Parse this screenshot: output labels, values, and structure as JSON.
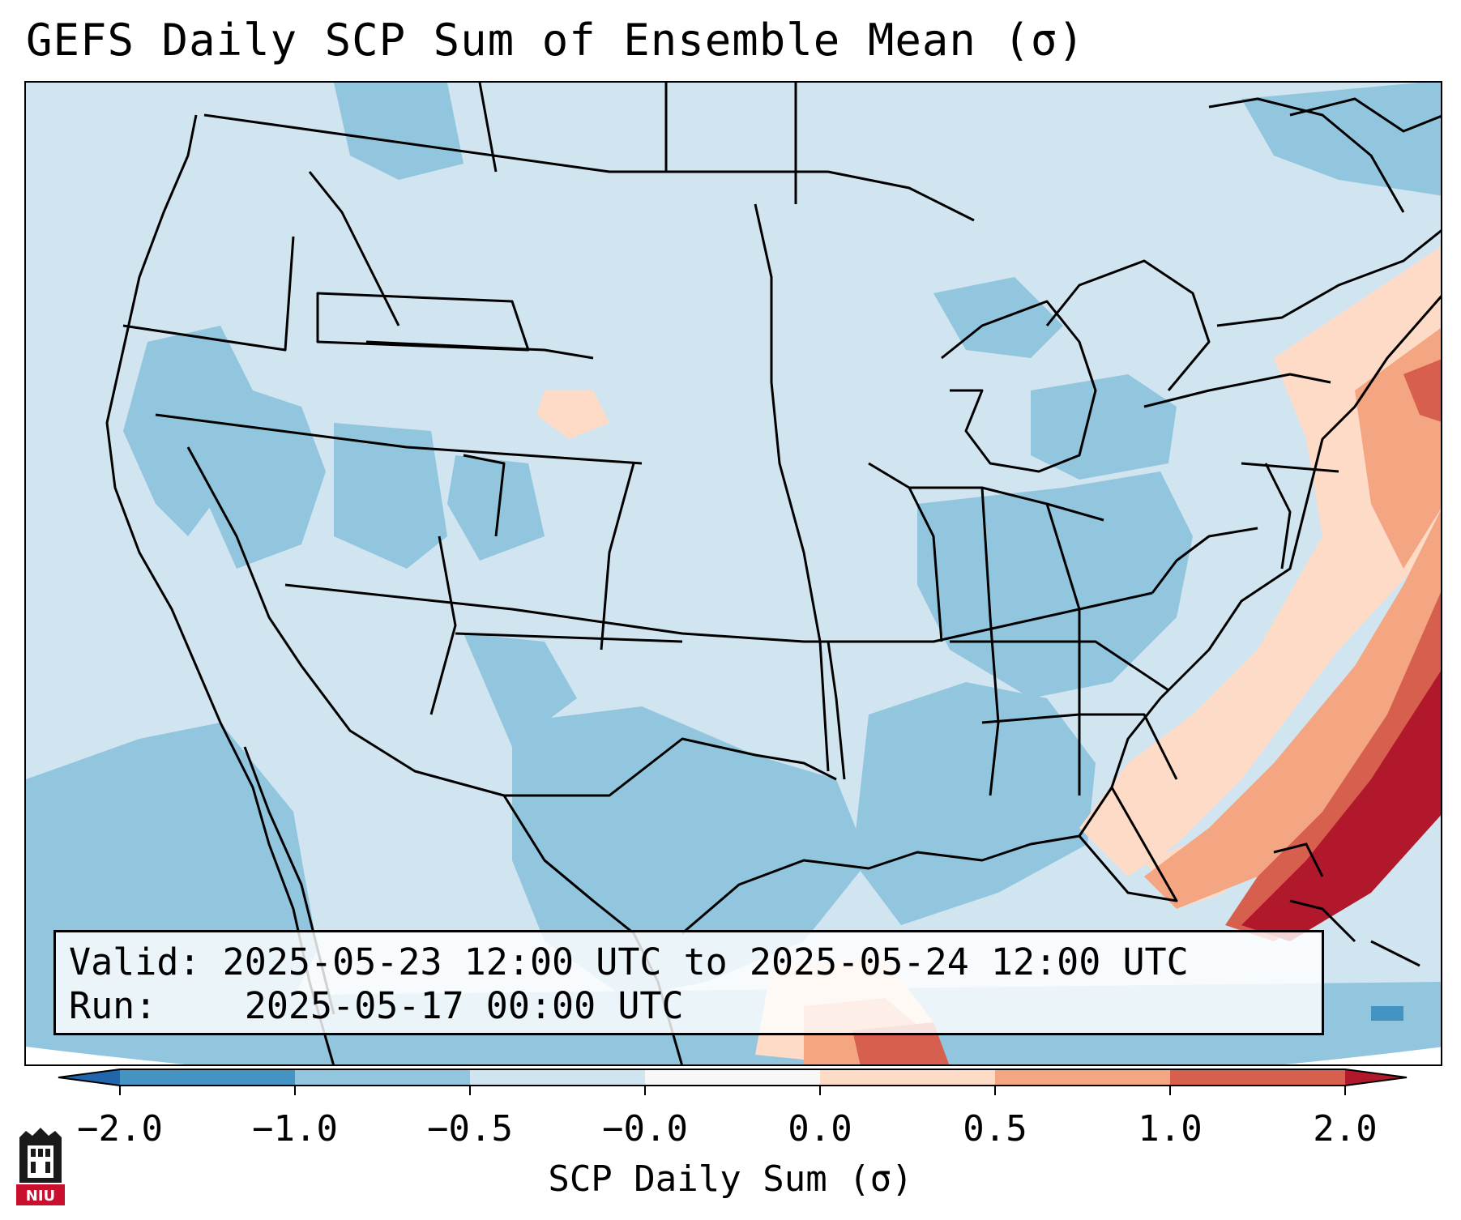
{
  "title": "GEFS Daily SCP Sum of Ensemble Mean (σ)",
  "info": {
    "valid_label": "Valid:",
    "valid_value": "2025-05-23 12:00 UTC to 2025-05-24 12:00 UTC",
    "run_label": "Run:",
    "run_value": "2025-05-17 00:00 UTC"
  },
  "colorbar": {
    "label": "SCP Daily Sum (σ)",
    "ticks": [
      "−2.0",
      "−1.0",
      "−0.5",
      "−0.0",
      "0.0",
      "0.5",
      "1.0",
      "2.0"
    ],
    "colors": {
      "under": "#2166ac",
      "bin_m2_m1": "#4393c3",
      "bin_m1_m05": "#92c5de",
      "bin_m05_m0": "#d1e5f0",
      "bin_0_0": "#f7f7f7",
      "bin_0_05": "#fddbc7",
      "bin_05_1": "#f4a582",
      "bin_1_2": "#d6604d",
      "over": "#b2182b"
    }
  },
  "logo": {
    "name": "NIU"
  }
}
